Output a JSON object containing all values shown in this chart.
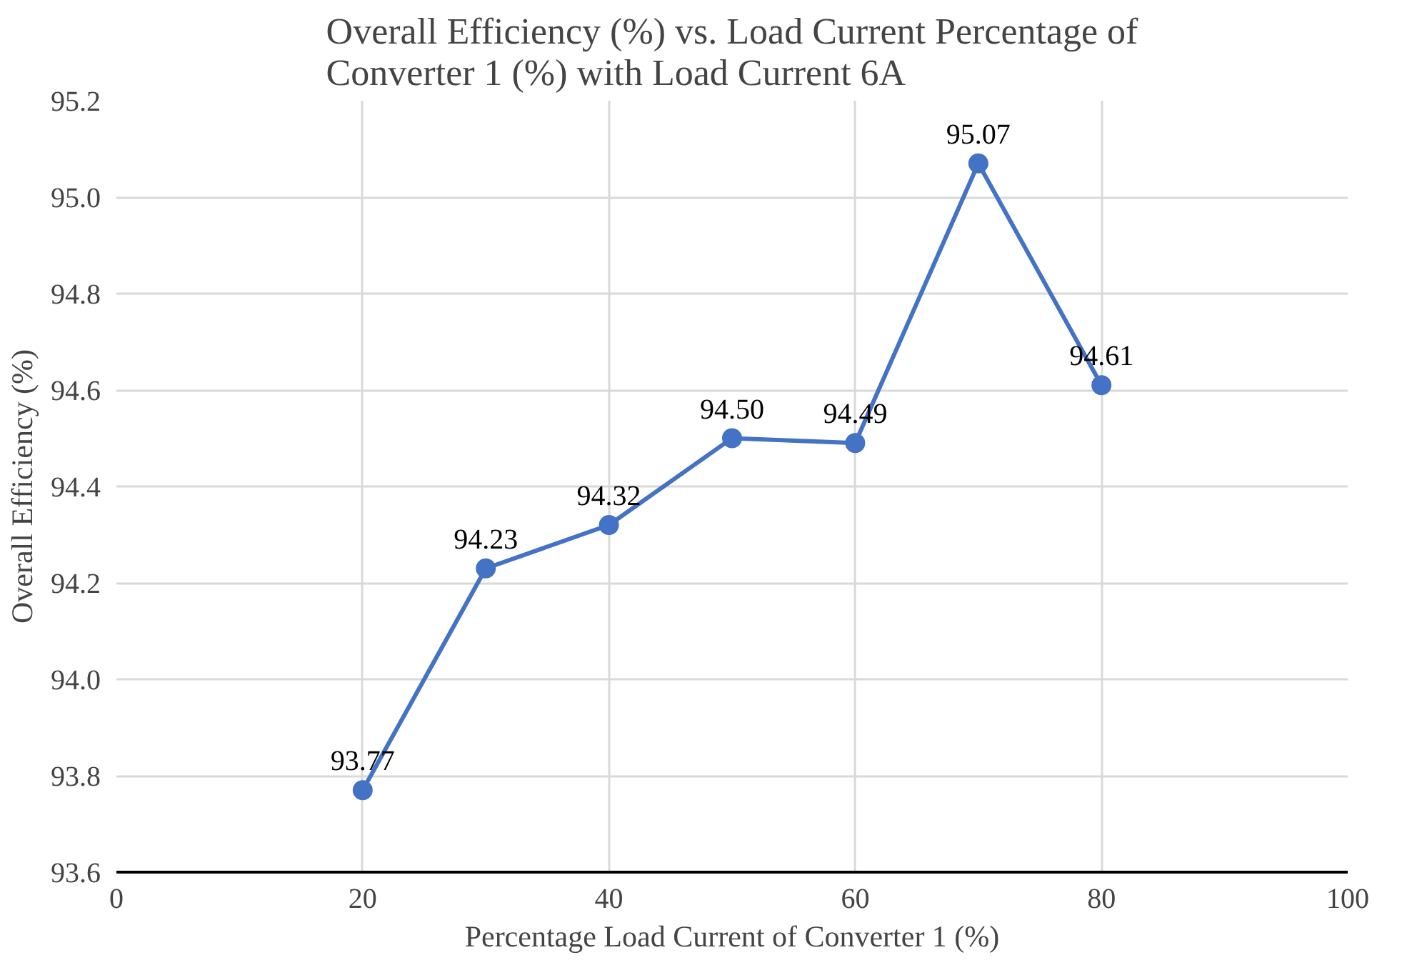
{
  "chart_data": {
    "type": "line",
    "title": "Overall Efficiency (%) vs. Load Current Percentage of\nConverter 1 (%) with Load Current 6A",
    "xlabel": "Percentage Load Current of Converter 1 (%)",
    "ylabel": "Overall Efficiency (%)",
    "x": [
      20,
      30,
      40,
      50,
      60,
      70,
      80
    ],
    "series": [
      {
        "color": "#4472c4",
        "values": [
          93.77,
          94.23,
          94.32,
          94.5,
          94.49,
          95.07,
          94.61
        ],
        "value_labels": [
          "93.77",
          "94.23",
          "94.32",
          "94.50",
          "94.49",
          "95.07",
          "94.61"
        ]
      }
    ],
    "xlim": [
      0,
      100
    ],
    "xticks": [
      0,
      20,
      40,
      60,
      80,
      100
    ],
    "ylim": [
      93.6,
      95.2
    ],
    "yticks": [
      {
        "value": 93.6,
        "label": "93.6"
      },
      {
        "value": 93.8,
        "label": "93.8"
      },
      {
        "value": 94.0,
        "label": "94.0"
      },
      {
        "value": 94.2,
        "label": "94.2"
      },
      {
        "value": 94.4,
        "label": "94.4"
      },
      {
        "value": 94.6,
        "label": "94.6"
      },
      {
        "value": 94.8,
        "label": "94.8"
      },
      {
        "value": 95.0,
        "label": "95.0"
      },
      {
        "value": 95.2,
        "label": "95.2"
      }
    ],
    "grid": true,
    "marker": "circle",
    "line_style": "solid"
  }
}
